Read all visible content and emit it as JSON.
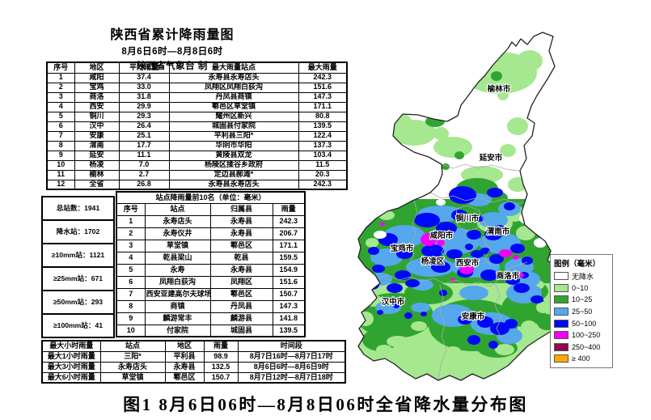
{
  "title": "陕西省累计降雨量图",
  "subtitle_period": "8月6日6时—8月8日6时",
  "subtitle_author": "陕西省气象台  制",
  "caption": "图1  8月6日06时—8月8日06时全省降水量分布图",
  "region_table": {
    "headers": [
      "序号",
      "地区",
      "平均雨量",
      "最大雨量站点",
      "最大雨量"
    ],
    "rows": [
      [
        "1",
        "咸阳",
        "37.4",
        "永寿县永寿店头",
        "242.3"
      ],
      [
        "2",
        "宝鸡",
        "33.0",
        "凤翔区凤翔白荻沟",
        "151.6"
      ],
      [
        "3",
        "商洛",
        "31.8",
        "丹凤县商镇",
        "147.3"
      ],
      [
        "4",
        "西安",
        "29.9",
        "鄠邑区草堂镇",
        "171.1"
      ],
      [
        "5",
        "铜川",
        "29.3",
        "耀州区新兴",
        "80.8"
      ],
      [
        "6",
        "汉中",
        "26.4",
        "城固县付家院",
        "139.5"
      ],
      [
        "7",
        "安康",
        "25.1",
        "平利县三阳*",
        "122.4"
      ],
      [
        "8",
        "渭南",
        "17.7",
        "华阴市华阳",
        "137.3"
      ],
      [
        "9",
        "延安",
        "11.1",
        "黄陵县双龙",
        "103.4"
      ],
      [
        "10",
        "杨凌",
        "7.0",
        "杨陵区揉谷乡政府",
        "11.5"
      ],
      [
        "11",
        "榆林",
        "2.7",
        "定边县郝滩*",
        "20.3"
      ],
      [
        "12",
        "全省",
        "26.8",
        "永寿县永寿店头",
        "242.3"
      ]
    ]
  },
  "stats": {
    "rows": [
      [
        "总站数：1941"
      ],
      [
        "降水站：1702"
      ],
      [
        "≥10mm站：1121"
      ],
      [
        "≥25mm站：671"
      ],
      [
        "≥50mm站：293"
      ],
      [
        "≥100mm站：41"
      ]
    ]
  },
  "station_table": {
    "title": "站点降雨量前10名（单位：毫米）",
    "headers": [
      "序号",
      "站点",
      "归属县",
      "雨量"
    ],
    "rows": [
      [
        "1",
        "永寿店头",
        "永寿县",
        "242.3"
      ],
      [
        "2",
        "永寿仪井",
        "永寿县",
        "206.7"
      ],
      [
        "3",
        "草堂镇",
        "鄠邑区",
        "171.1"
      ],
      [
        "4",
        "乾县梁山",
        "乾县",
        "159.5"
      ],
      [
        "5",
        "永寿",
        "永寿县",
        "154.9"
      ],
      [
        "6",
        "凤翔白荻沟",
        "凤翔区",
        "151.6"
      ],
      [
        "7",
        "西安亚建高尔夫球场",
        "鄠邑区",
        "150.7"
      ],
      [
        "8",
        "商镇",
        "丹凤县",
        "147.3"
      ],
      [
        "9",
        "麟游常丰",
        "麟游县",
        "141.8"
      ],
      [
        "10",
        "付家院",
        "城固县",
        "139.5"
      ]
    ]
  },
  "hourly_table": {
    "headers": [
      "最大小时雨量",
      "站点",
      "地区",
      "雨量",
      "时间段"
    ],
    "rows": [
      [
        "最大1小时雨量",
        "三阳*",
        "平利县",
        "98.9",
        "8月7日16时—8月7日17时"
      ],
      [
        "最大3小时雨量",
        "永寿店头",
        "永寿县",
        "132.5",
        "8月6日6时—8月6日9时"
      ],
      [
        "最大6小时雨量",
        "草堂镇",
        "鄠邑区",
        "150.7",
        "8月7日12时—8月7日18时"
      ]
    ]
  },
  "legend": {
    "title": "图例（毫米）",
    "items": [
      {
        "label": "无降水",
        "color": "#FFFFFF"
      },
      {
        "label": "0~10",
        "color": "#A5E88F"
      },
      {
        "label": "10~25",
        "color": "#30A430"
      },
      {
        "label": "25~50",
        "color": "#55A8EC"
      },
      {
        "label": "50~100",
        "color": "#0008F8"
      },
      {
        "label": "100~250",
        "color": "#F400F4"
      },
      {
        "label": "250~400",
        "color": "#8C0A4E"
      },
      {
        "label": "≥ 400",
        "color": "#FFA800"
      }
    ]
  },
  "map": {
    "cities": [
      "榆林市",
      "延安市",
      "铜川市",
      "渭南市",
      "咸阳市",
      "宝鸡市",
      "杨凌区",
      "西安市",
      "商洛市",
      "汉中市",
      "安康市"
    ]
  },
  "colors": {
    "none": "#FFFFFF",
    "r0_10": "#A5E88F",
    "r10_25": "#30A430",
    "r25_50": "#55A8EC",
    "r50_100": "#0008F8",
    "r100_250": "#F400F4",
    "r250_400": "#8C0A4E",
    "r400": "#FFA800"
  }
}
